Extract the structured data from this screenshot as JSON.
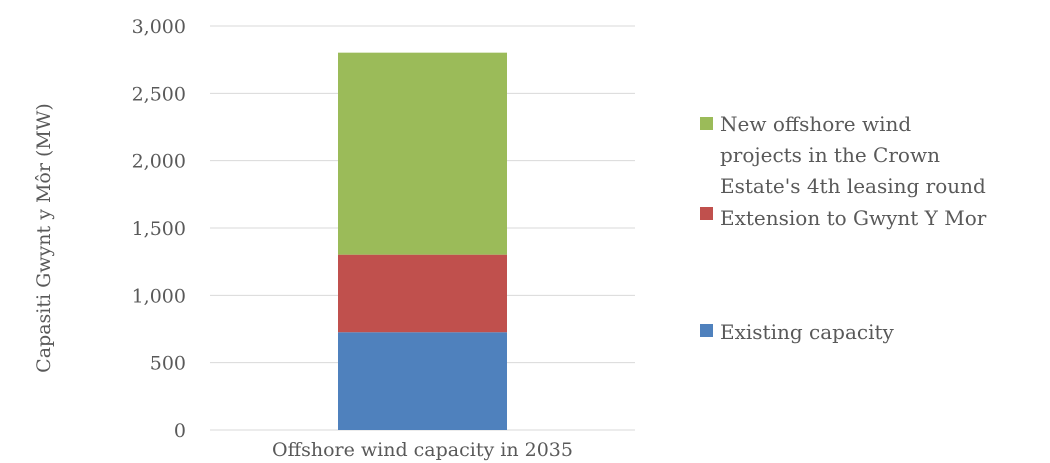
{
  "chart_data": {
    "type": "bar",
    "stacked": true,
    "categories": [
      "Offshore wind capacity in 2035"
    ],
    "series": [
      {
        "name": "Existing capacity",
        "values": [
          726
        ],
        "color": "#4f81bd"
      },
      {
        "name": "Extension to Gwynt Y Mor",
        "values": [
          576
        ],
        "color": "#c0504d"
      },
      {
        "name": "New offshore wind projects in the Crown Estate's 4th leasing round",
        "values": [
          1500
        ],
        "color": "#9bbb59"
      }
    ],
    "xlabel": "",
    "ylabel": "Capasiti Gwynt y Môr (MW)",
    "ylim": [
      0,
      3000
    ],
    "yticks": [
      0,
      500,
      1000,
      1500,
      2000,
      2500,
      3000
    ],
    "ytick_labels": [
      "0",
      "500",
      "1,000",
      "1,500",
      "2,000",
      "2,500",
      "3,000"
    ],
    "grid": true,
    "legend_position": "right",
    "legend": {
      "entries": [
        {
          "series_index": 2,
          "lines": [
            "New offshore wind",
            "projects in the Crown",
            "Estate's 4th leasing round"
          ]
        },
        {
          "series_index": 1,
          "lines": [
            "Extension to Gwynt Y Mor"
          ]
        },
        {
          "series_index": 0,
          "lines": [
            "Existing capacity"
          ]
        }
      ]
    },
    "gridline_color": "#d9d9d9"
  }
}
